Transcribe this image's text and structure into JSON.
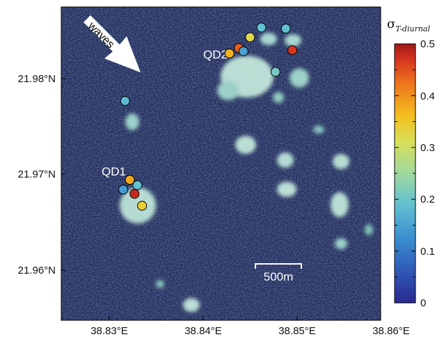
{
  "map": {
    "labels": {
      "qd1": "QD1",
      "qd2": "QD2",
      "waves": "waves",
      "scale_bar": "500m"
    },
    "x_ticks": [
      "38.83°E",
      "38.84°E",
      "38.85°E",
      "38.86°E"
    ],
    "y_ticks": [
      "21.98°N",
      "21.97°N",
      "21.96°N"
    ]
  },
  "colorbar": {
    "title_symbol": "σ",
    "title_subscript": "T-diurnal",
    "ticks": [
      "0.5",
      "0.4",
      "0.3",
      "0.2",
      "0.1",
      "0"
    ]
  },
  "chart_data": {
    "type": "scatter",
    "xlabel": "",
    "ylabel": "",
    "xlim": [
      38.827,
      38.861
    ],
    "ylim": [
      21.955,
      21.984
    ],
    "colorscale": {
      "name": "jet",
      "range": [
        0,
        0.5
      ]
    },
    "series": [
      {
        "points": [
          {
            "lon": 38.8483,
            "lat": 21.9821,
            "value": 0.19
          },
          {
            "lon": 38.8509,
            "lat": 21.982,
            "value": 0.19
          },
          {
            "lon": 38.8471,
            "lat": 21.9812,
            "value": 0.32
          },
          {
            "lon": 38.8459,
            "lat": 21.9802,
            "value": 0.44
          },
          {
            "lon": 38.8449,
            "lat": 21.9797,
            "value": 0.37
          },
          {
            "lon": 38.8464,
            "lat": 21.9799,
            "value": 0.15
          },
          {
            "lon": 38.8516,
            "lat": 21.98,
            "value": 0.47
          },
          {
            "lon": 38.8498,
            "lat": 21.978,
            "value": 0.21
          },
          {
            "lon": 38.8338,
            "lat": 21.9753,
            "value": 0.18
          },
          {
            "lon": 38.8343,
            "lat": 21.968,
            "value": 0.38
          },
          {
            "lon": 38.8351,
            "lat": 21.9675,
            "value": 0.19
          },
          {
            "lon": 38.8336,
            "lat": 21.9671,
            "value": 0.14
          },
          {
            "lon": 38.8348,
            "lat": 21.9667,
            "value": 0.48
          },
          {
            "lon": 38.8356,
            "lat": 21.9656,
            "value": 0.34
          }
        ]
      }
    ]
  }
}
